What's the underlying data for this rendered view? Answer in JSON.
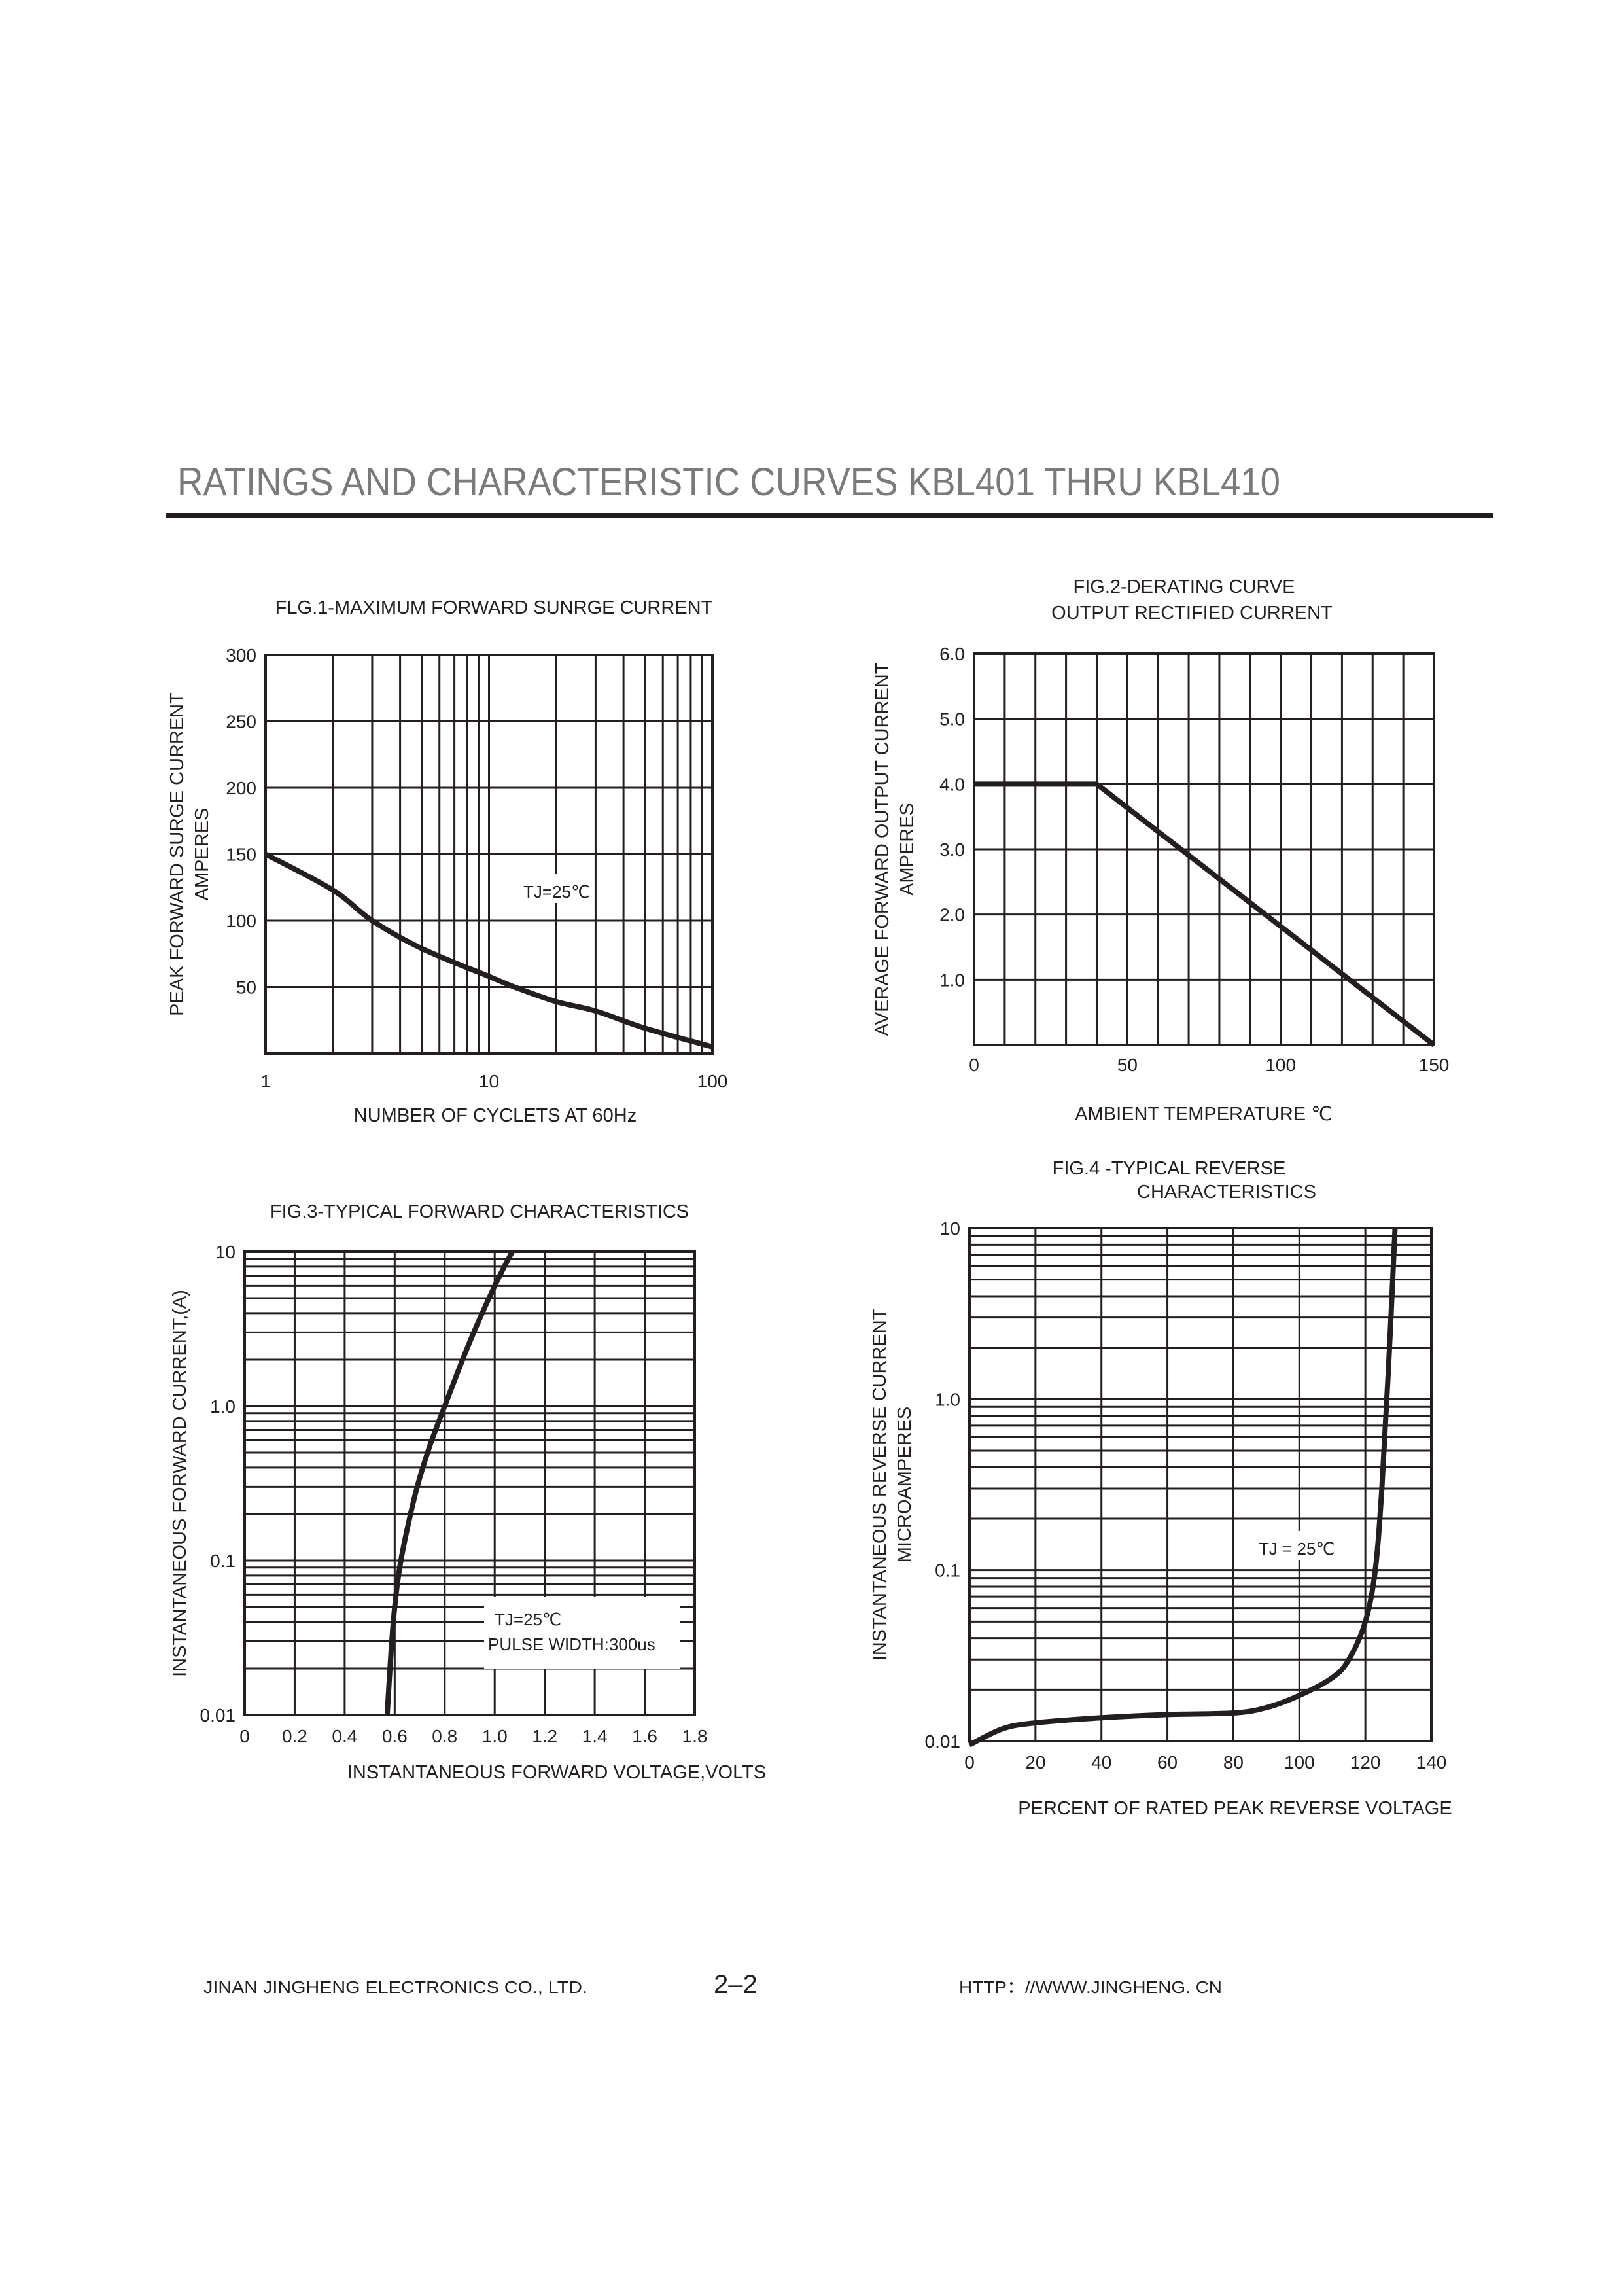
{
  "header": {
    "title": "RATINGS AND CHARACTERISTIC CURVES KBL401   THRU   KBL410"
  },
  "footer": {
    "company": "JINAN JINGHENG  ELECTRONICS   CO., LTD.",
    "page": "2–2",
    "website": "HTTP：//WWW.JINGHENG. CN"
  },
  "chart_data": [
    {
      "type": "line",
      "title": "FLG.1-MAXIMUM FORWARD SUNRGE CURRENT",
      "xlabel": "NUMBER OF CYCLETS AT 60Hz",
      "ylabel": [
        "PEAK FORWARD SURGE CURRENT",
        "AMPERES"
      ],
      "xscale": "log",
      "xlim": [
        1,
        100
      ],
      "ylim": [
        0,
        300
      ],
      "xticks": [
        "1",
        "10",
        "100"
      ],
      "xtick_values": [
        1,
        10,
        100
      ],
      "yticks": [
        "300",
        "250",
        "200",
        "150",
        "100",
        "50"
      ],
      "ytick_values": [
        300,
        250,
        200,
        150,
        100,
        50
      ],
      "grid": true,
      "annotation": "TJ=25℃",
      "x": [
        1,
        2,
        3,
        5,
        10,
        13,
        20,
        30,
        50,
        100
      ],
      "y": [
        150,
        123,
        100,
        79,
        58,
        50,
        39,
        32,
        19,
        5
      ]
    },
    {
      "type": "line",
      "title": [
        "FIG.2-DERATING CURVE",
        "OUTPUT RECTIFIED CURRENT"
      ],
      "xlabel": "AMBIENT TEMPERATURE ℃",
      "ylabel": [
        "AVERAGE FORWARD OUTPUT CURRENT",
        "AMPERES"
      ],
      "xlim": [
        0,
        150
      ],
      "ylim": [
        0,
        6
      ],
      "xticks": [
        "0",
        "50",
        "100",
        "150"
      ],
      "xtick_values": [
        0,
        50,
        100,
        150
      ],
      "yticks": [
        "6.0",
        "5.0",
        "4.0",
        "3.0",
        "2.0",
        "1.0"
      ],
      "ytick_values": [
        6,
        5,
        4,
        3,
        2,
        1
      ],
      "grid": true,
      "x": [
        0,
        40,
        150
      ],
      "y": [
        4,
        4,
        0
      ]
    },
    {
      "type": "line",
      "title": "FIG.3-TYPICAL FORWARD CHARACTERISTICS",
      "xlabel": "INSTANTANEOUS FORWARD VOLTAGE,VOLTS",
      "ylabel": [
        "INSTANTANEOUS FORWARD CURRENT,(A)"
      ],
      "yscale": "log",
      "xlim": [
        0,
        1.8
      ],
      "ylim": [
        0.01,
        10
      ],
      "xticks": [
        "0",
        "0.2",
        "0.4",
        "0.6",
        "0.8",
        "1.0",
        "1.2",
        "1.4",
        "1.6",
        "1.8"
      ],
      "xtick_values": [
        0,
        0.2,
        0.4,
        0.6,
        0.8,
        1.0,
        1.2,
        1.4,
        1.6,
        1.8
      ],
      "yticks": [
        "10",
        "1.0",
        "0.1",
        "0.01"
      ],
      "ytick_values": [
        10,
        1,
        0.1,
        0.01
      ],
      "grid": true,
      "annotation": [
        "TJ=25℃",
        "PULSE WIDTH:300us"
      ],
      "x": [
        0.57,
        0.585,
        0.6,
        0.62,
        0.65,
        0.69,
        0.74,
        0.8,
        0.9,
        1.0,
        1.07
      ],
      "y": [
        0.01,
        0.025,
        0.05,
        0.09,
        0.16,
        0.3,
        0.55,
        1.0,
        2.6,
        6.0,
        10
      ]
    },
    {
      "type": "line",
      "title": [
        "FIG.4 -TYPICAL REVERSE",
        "CHARACTERISTICS"
      ],
      "xlabel": "PERCENT OF RATED PEAK REVERSE VOLTAGE",
      "ylabel": [
        "INSTANTANEOUS REVERSE CURRENT",
        "MICROAMPERES"
      ],
      "yscale": "log",
      "xlim": [
        0,
        140
      ],
      "ylim": [
        0.01,
        10
      ],
      "xticks": [
        "0",
        "20",
        "40",
        "60",
        "80",
        "100",
        "120",
        "140"
      ],
      "xtick_values": [
        0,
        20,
        40,
        60,
        80,
        100,
        120,
        140
      ],
      "yticks": [
        "10",
        "1.0",
        "0.1",
        "0.01"
      ],
      "ytick_values": [
        10,
        1,
        0.1,
        0.01
      ],
      "grid": true,
      "annotation": "TJ = 25℃",
      "x": [
        0,
        10,
        20,
        40,
        60,
        80,
        90,
        100,
        110,
        115,
        120,
        123,
        125,
        127,
        129
      ],
      "y": [
        0.0095,
        0.0118,
        0.0128,
        0.0137,
        0.0143,
        0.0146,
        0.0157,
        0.0185,
        0.0235,
        0.03,
        0.05,
        0.1,
        0.3,
        1.5,
        10
      ]
    }
  ]
}
